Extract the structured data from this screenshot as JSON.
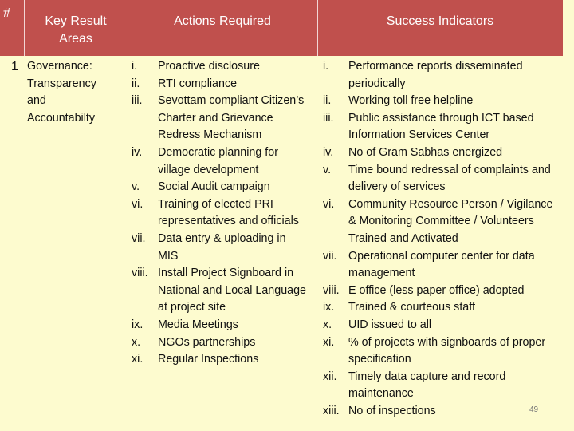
{
  "table": {
    "header": [
      "#",
      "Key Result Areas",
      "Actions Required",
      "Success Indicators"
    ],
    "rows": [
      {
        "number": "1",
        "area": "Governance: Transparency and Accountabilty",
        "actions": [
          {
            "num": "i.",
            "text": "Proactive disclosure"
          },
          {
            "num": "ii.",
            "text": "RTI compliance"
          },
          {
            "num": "iii.",
            "text": "Sevottam compliant Citizen’s Charter and Grievance Redress Mechanism"
          },
          {
            "num": "iv.",
            "text": "Democratic planning for village development"
          },
          {
            "num": "v.",
            "text": "Social Audit campaign"
          },
          {
            "num": "vi.",
            "text": "Training of elected PRI representatives and officials"
          },
          {
            "num": "vii.",
            "text": "Data entry & uploading in MIS"
          },
          {
            "num": "viii.",
            "text": "Install Project Signboard in National and Local Language at project site"
          },
          {
            "num": "ix.",
            "text": "Media Meetings"
          },
          {
            "num": "x.",
            "text": "NGOs partnerships"
          },
          {
            "num": "xi.",
            "text": "Regular Inspections"
          }
        ],
        "indicators": [
          {
            "num": "i.",
            "text": "Performance reports disseminated periodically"
          },
          {
            "num": "ii.",
            "text": "Working toll free helpline"
          },
          {
            "num": "iii.",
            "text": "Public assistance through ICT based Information Services Center"
          },
          {
            "num": "iv.",
            "text": "No of Gram Sabhas energized"
          },
          {
            "num": "v.",
            "text": "Time bound redressal of complaints and delivery of services"
          },
          {
            "num": "vi.",
            "text": "Community Resource Person / Vigilance & Monitoring Committee / Volunteers Trained and Activated"
          },
          {
            "num": "vii.",
            "text": "Operational computer center for data management"
          },
          {
            "num": "viii.",
            "text": "E office (less paper office) adopted"
          },
          {
            "num": "ix.",
            "text": "Trained & courteous staff"
          },
          {
            "num": "x.",
            "text": "UID issued to all"
          },
          {
            "num": "xi.",
            "text": "% of projects with signboards of proper specification"
          },
          {
            "num": "xii.",
            "text": "Timely data capture and record maintenance"
          },
          {
            "num": "xiii.",
            "text": "No of inspections"
          }
        ]
      }
    ]
  },
  "page_number": "49"
}
